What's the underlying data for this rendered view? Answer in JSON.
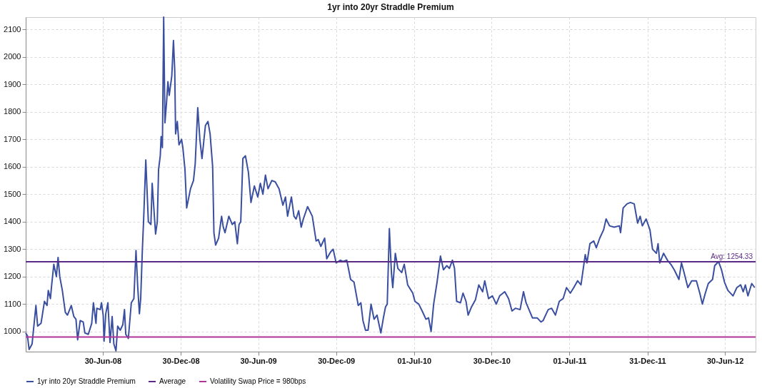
{
  "chart_data": {
    "type": "line",
    "title": "1yr into 20yr Straddle Premium",
    "xlim": [
      "2008-01-01",
      "2012-09-10"
    ],
    "ylim": [
      927,
      2145
    ],
    "xticks": [
      {
        "value": "2008-06-30",
        "label": "30-Jun-08"
      },
      {
        "value": "2008-12-30",
        "label": "30-Dec-08"
      },
      {
        "value": "2009-06-30",
        "label": "30-Jun-09"
      },
      {
        "value": "2009-12-30",
        "label": "30-Dec-09"
      },
      {
        "value": "2010-07-01",
        "label": "01-Jul-10"
      },
      {
        "value": "2010-12-30",
        "label": "30-Dec-10"
      },
      {
        "value": "2011-07-01",
        "label": "01-Jul-11"
      },
      {
        "value": "2011-12-31",
        "label": "31-Dec-11"
      },
      {
        "value": "2012-06-30",
        "label": "30-Jun-12"
      }
    ],
    "yticks": [
      1000,
      1100,
      1200,
      1300,
      1400,
      1500,
      1600,
      1700,
      1800,
      1900,
      2000,
      2100
    ],
    "grid": true,
    "legend": "bottom",
    "annotations": [
      {
        "text": "Avg: 1254.33",
        "x": "2012-09-10",
        "y": 1254.33
      }
    ],
    "series": [
      {
        "name": "1yr into 20yr Straddle Premium",
        "color": "#3a4fa0",
        "x": [
          "2008-01-01",
          "2008-01-05",
          "2008-01-09",
          "2008-01-16",
          "2008-01-25",
          "2008-01-29",
          "2008-02-06",
          "2008-02-14",
          "2008-02-20",
          "2008-02-23",
          "2008-02-28",
          "2008-03-02",
          "2008-03-07",
          "2008-03-13",
          "2008-03-17",
          "2008-03-21",
          "2008-03-27",
          "2008-04-03",
          "2008-04-08",
          "2008-04-17",
          "2008-04-23",
          "2008-04-28",
          "2008-05-02",
          "2008-05-08",
          "2008-05-15",
          "2008-05-19",
          "2008-05-27",
          "2008-06-04",
          "2008-06-08",
          "2008-06-14",
          "2008-06-16",
          "2008-06-24",
          "2008-06-27",
          "2008-07-01",
          "2008-07-03",
          "2008-07-07",
          "2008-07-12",
          "2008-07-17",
          "2008-07-22",
          "2008-07-26",
          "2008-07-31",
          "2008-08-04",
          "2008-08-10",
          "2008-08-16",
          "2008-08-20",
          "2008-08-23",
          "2008-08-29",
          "2008-09-05",
          "2008-09-11",
          "2008-09-16",
          "2008-09-20",
          "2008-09-24",
          "2008-09-27",
          "2008-10-01",
          "2008-10-04",
          "2008-10-09",
          "2008-10-15",
          "2008-10-21",
          "2008-10-24",
          "2008-11-01",
          "2008-11-05",
          "2008-11-08",
          "2008-11-12",
          "2008-11-14",
          "2008-11-17",
          "2008-11-20",
          "2008-11-23",
          "2008-11-27",
          "2008-11-30",
          "2008-12-03",
          "2008-12-09",
          "2008-12-13",
          "2008-12-16",
          "2008-12-18",
          "2008-12-22",
          "2008-12-26",
          "2009-01-01",
          "2009-01-04",
          "2009-01-09",
          "2009-01-13",
          "2009-01-22",
          "2009-01-29",
          "2009-02-02",
          "2009-02-08",
          "2009-02-13",
          "2009-02-18",
          "2009-02-22",
          "2009-02-26",
          "2009-03-04",
          "2009-03-09",
          "2009-03-15",
          "2009-03-18",
          "2009-03-22",
          "2009-03-29",
          "2009-04-05",
          "2009-04-09",
          "2009-04-13",
          "2009-04-22",
          "2009-04-30",
          "2009-05-06",
          "2009-05-12",
          "2009-05-16",
          "2009-05-20",
          "2009-05-25",
          "2009-05-31",
          "2009-06-07",
          "2009-06-13",
          "2009-06-21",
          "2009-06-29",
          "2009-07-05",
          "2009-07-11",
          "2009-07-17",
          "2009-07-23",
          "2009-08-01",
          "2009-08-09",
          "2009-08-18",
          "2009-08-27",
          "2009-09-02",
          "2009-09-07",
          "2009-09-16",
          "2009-09-22",
          "2009-09-27",
          "2009-10-03",
          "2009-10-09",
          "2009-10-14",
          "2009-10-24",
          "2009-11-04",
          "2009-11-13",
          "2009-11-18",
          "2009-11-24",
          "2009-12-03",
          "2009-12-08",
          "2009-12-17",
          "2009-12-23",
          "2009-12-30",
          "2010-01-09",
          "2010-01-15",
          "2010-01-24",
          "2010-02-02",
          "2010-02-10",
          "2010-02-20",
          "2010-02-26",
          "2010-03-03",
          "2010-03-09",
          "2010-03-15",
          "2010-03-22",
          "2010-03-29",
          "2010-04-05",
          "2010-04-14",
          "2010-04-20",
          "2010-04-25",
          "2010-04-29",
          "2010-05-04",
          "2010-05-09",
          "2010-05-12",
          "2010-05-18",
          "2010-05-24",
          "2010-06-02",
          "2010-06-08",
          "2010-06-16",
          "2010-06-28",
          "2010-07-03",
          "2010-07-12",
          "2010-07-20",
          "2010-07-29",
          "2010-08-04",
          "2010-08-10",
          "2010-08-16",
          "2010-08-24",
          "2010-09-01",
          "2010-09-08",
          "2010-09-16",
          "2010-09-22",
          "2010-09-29",
          "2010-10-04",
          "2010-10-09",
          "2010-10-18",
          "2010-10-24",
          "2010-10-31",
          "2010-11-05",
          "2010-11-13",
          "2010-11-22",
          "2010-11-30",
          "2010-12-09",
          "2010-12-14",
          "2010-12-23",
          "2011-01-01",
          "2011-01-10",
          "2011-01-18",
          "2011-01-30",
          "2011-02-08",
          "2011-02-16",
          "2011-02-24",
          "2011-03-07",
          "2011-03-15",
          "2011-03-21",
          "2011-04-05",
          "2011-04-16",
          "2011-04-25",
          "2011-04-30",
          "2011-05-12",
          "2011-05-20",
          "2011-05-29",
          "2011-06-07",
          "2011-06-16",
          "2011-06-24",
          "2011-07-03",
          "2011-07-11",
          "2011-07-20",
          "2011-07-28",
          "2011-08-07",
          "2011-08-11",
          "2011-08-18",
          "2011-08-27",
          "2011-09-02",
          "2011-09-10",
          "2011-09-19",
          "2011-09-25",
          "2011-10-03",
          "2011-10-14",
          "2011-10-26",
          "2011-10-29",
          "2011-11-04",
          "2011-11-13",
          "2011-11-21",
          "2011-11-30",
          "2011-12-08",
          "2011-12-14",
          "2011-12-19",
          "2011-12-28",
          "2012-01-06",
          "2012-01-12",
          "2012-01-21",
          "2012-01-25",
          "2012-01-29",
          "2012-02-07",
          "2012-02-16",
          "2012-02-24",
          "2012-03-03",
          "2012-03-14",
          "2012-03-20",
          "2012-03-26",
          "2012-04-04",
          "2012-04-13",
          "2012-04-24",
          "2012-05-02",
          "2012-05-08",
          "2012-05-15",
          "2012-05-22",
          "2012-06-01",
          "2012-06-06",
          "2012-06-15",
          "2012-06-22",
          "2012-06-29",
          "2012-07-07",
          "2012-07-19",
          "2012-07-28",
          "2012-08-06",
          "2012-08-12",
          "2012-08-17",
          "2012-08-23",
          "2012-09-01",
          "2012-09-08"
        ],
        "values": [
          995,
          985,
          935,
          955,
          1095,
          1020,
          1030,
          1110,
          1095,
          1150,
          1120,
          1170,
          1245,
          1200,
          1270,
          1200,
          1150,
          1070,
          1060,
          1095,
          1055,
          1045,
          970,
          1040,
          1035,
          995,
          990,
          1030,
          1105,
          1030,
          1085,
          1080,
          1105,
          1060,
          965,
          1065,
          1105,
          960,
          1055,
          955,
          930,
          1020,
          1005,
          1025,
          1080,
          990,
          975,
          1105,
          1120,
          1295,
          1165,
          1065,
          1120,
          1300,
          1410,
          1625,
          1400,
          1390,
          1540,
          1355,
          1400,
          1590,
          1640,
          1710,
          1670,
          2145,
          1760,
          1840,
          1910,
          1860,
          1930,
          2060,
          1950,
          1720,
          1765,
          1680,
          1700,
          1670,
          1590,
          1450,
          1520,
          1550,
          1610,
          1815,
          1700,
          1630,
          1690,
          1750,
          1765,
          1720,
          1600,
          1360,
          1315,
          1340,
          1420,
          1380,
          1360,
          1420,
          1390,
          1400,
          1320,
          1390,
          1400,
          1630,
          1640,
          1580,
          1470,
          1530,
          1490,
          1540,
          1500,
          1570,
          1520,
          1550,
          1545,
          1520,
          1460,
          1490,
          1420,
          1490,
          1420,
          1410,
          1440,
          1380,
          1410,
          1455,
          1420,
          1330,
          1335,
          1310,
          1340,
          1265,
          1290,
          1300,
          1250,
          1260,
          1255,
          1260,
          1190,
          1180,
          1095,
          1105,
          1040,
          1005,
          1005,
          1100,
          1045,
          1060,
          995,
          1050,
          1090,
          1100,
          1375,
          1210,
          1160,
          1285,
          1230,
          1215,
          1245,
          1170,
          1140,
          1110,
          1100,
          1075,
          1045,
          1050,
          1000,
          1100,
          1180,
          1275,
          1225,
          1240,
          1230,
          1260,
          1230,
          1110,
          1105,
          1140,
          1110,
          1060,
          1090,
          1115,
          1170,
          1145,
          1185,
          1120,
          1130,
          1100,
          1130,
          1145,
          1120,
          1075,
          1085,
          1080,
          1145,
          1105,
          1050,
          1050,
          1035,
          1040,
          1080,
          1085,
          1060,
          1110,
          1120,
          1160,
          1140,
          1160,
          1185,
          1170,
          1280,
          1250,
          1320,
          1330,
          1305,
          1340,
          1370,
          1410,
          1385,
          1380,
          1385,
          1360,
          1450,
          1465,
          1470,
          1465,
          1395,
          1420,
          1385,
          1410,
          1370,
          1300,
          1285,
          1320,
          1250,
          1285,
          1260,
          1245,
          1225,
          1190,
          1250,
          1215,
          1160,
          1185,
          1185,
          1140,
          1100,
          1140,
          1175,
          1190,
          1240,
          1255,
          1225,
          1180,
          1150,
          1130,
          1160,
          1170,
          1145,
          1170,
          1130,
          1175,
          1160
        ]
      },
      {
        "name": "Average",
        "color": "#5b2a86",
        "x": [
          "2008-01-01",
          "2012-09-10"
        ],
        "values": [
          1254.33,
          1254.33
        ]
      },
      {
        "name": "Volatility Swap Price = 980bps",
        "color": "#b0359a",
        "x": [
          "2008-01-01",
          "2012-09-10"
        ],
        "values": [
          980,
          980
        ]
      }
    ]
  }
}
